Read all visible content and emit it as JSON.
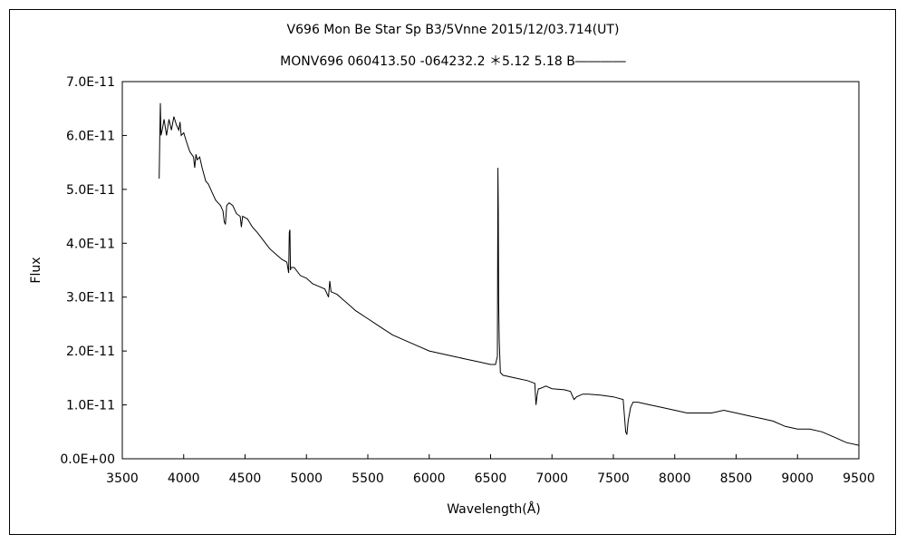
{
  "chart_data": {
    "type": "line",
    "title": "V696 Mon    Be Star    Sp B3/5Vnne    2015/12/03.714(UT)",
    "subtitle": "MONV696 060413.50 -064232.2 ＊5.12 5.18 B――――",
    "xlabel": "Wavelength(Å)",
    "ylabel": "Flux",
    "xlim": [
      3500,
      9500
    ],
    "ylim": [
      0,
      7e-11
    ],
    "xticks": [
      "3500",
      "4000",
      "4500",
      "5000",
      "5500",
      "6000",
      "6500",
      "7000",
      "7500",
      "8000",
      "8500",
      "9000",
      "9500"
    ],
    "yticks": [
      "0.0E+00",
      "1.0E-11",
      "2.0E-11",
      "3.0E-11",
      "4.0E-11",
      "5.0E-11",
      "6.0E-11",
      "7.0E-11"
    ],
    "grid": false,
    "legend": "none",
    "series": [
      {
        "color": "#000000",
        "x": [
          3800,
          3805,
          3810,
          3815,
          3825,
          3840,
          3860,
          3880,
          3900,
          3920,
          3940,
          3960,
          3970,
          3980,
          4000,
          4020,
          4050,
          4080,
          4090,
          4100,
          4110,
          4130,
          4150,
          4180,
          4200,
          4230,
          4260,
          4280,
          4300,
          4320,
          4330,
          4340,
          4350,
          4370,
          4400,
          4430,
          4460,
          4470,
          4480,
          4520,
          4560,
          4600,
          4650,
          4700,
          4750,
          4800,
          4840,
          4855,
          4860,
          4865,
          4870,
          4875,
          4900,
          4950,
          5000,
          5050,
          5100,
          5150,
          5180,
          5190,
          5200,
          5250,
          5300,
          5350,
          5400,
          5500,
          5600,
          5700,
          5800,
          5900,
          6000,
          6100,
          6200,
          6300,
          6400,
          6500,
          6540,
          6555,
          6560,
          6563,
          6566,
          6570,
          6580,
          6600,
          6700,
          6800,
          6860,
          6870,
          6880,
          6890,
          6900,
          6950,
          7000,
          7100,
          7150,
          7180,
          7200,
          7250,
          7300,
          7400,
          7500,
          7580,
          7600,
          7610,
          7620,
          7640,
          7660,
          7700,
          7800,
          7900,
          8000,
          8100,
          8200,
          8300,
          8400,
          8500,
          8600,
          8700,
          8800,
          8900,
          9000,
          9100,
          9200,
          9300,
          9400,
          9500
        ],
        "y": [
          5.2e-11,
          5.9e-11,
          6.6e-11,
          6e-11,
          6.1e-11,
          6.3e-11,
          6e-11,
          6.3e-11,
          6.1e-11,
          6.35e-11,
          6.2e-11,
          6.1e-11,
          6.25e-11,
          6e-11,
          6.05e-11,
          5.9e-11,
          5.7e-11,
          5.6e-11,
          5.4e-11,
          5.65e-11,
          5.55e-11,
          5.6e-11,
          5.4e-11,
          5.15e-11,
          5.1e-11,
          4.95e-11,
          4.8e-11,
          4.75e-11,
          4.7e-11,
          4.6e-11,
          4.4e-11,
          4.35e-11,
          4.7e-11,
          4.75e-11,
          4.7e-11,
          4.55e-11,
          4.5e-11,
          4.3e-11,
          4.5e-11,
          4.45e-11,
          4.3e-11,
          4.2e-11,
          4.05e-11,
          3.9e-11,
          3.8e-11,
          3.7e-11,
          3.65e-11,
          3.45e-11,
          4.2e-11,
          4.25e-11,
          3.5e-11,
          3.55e-11,
          3.55e-11,
          3.4e-11,
          3.35e-11,
          3.25e-11,
          3.2e-11,
          3.15e-11,
          3e-11,
          3.3e-11,
          3.1e-11,
          3.05e-11,
          2.95e-11,
          2.85e-11,
          2.75e-11,
          2.6e-11,
          2.45e-11,
          2.3e-11,
          2.2e-11,
          2.1e-11,
          2e-11,
          1.95e-11,
          1.9e-11,
          1.85e-11,
          1.8e-11,
          1.75e-11,
          1.75e-11,
          1.9e-11,
          5.4e-11,
          4.6e-11,
          2.9e-11,
          2.2e-11,
          1.6e-11,
          1.55e-11,
          1.5e-11,
          1.45e-11,
          1.4e-11,
          1e-11,
          1.2e-11,
          1.3e-11,
          1.3e-11,
          1.35e-11,
          1.3e-11,
          1.28e-11,
          1.25e-11,
          1.1e-11,
          1.15e-11,
          1.2e-11,
          1.2e-11,
          1.18e-11,
          1.15e-11,
          1.1e-11,
          5e-12,
          4.5e-12,
          7e-12,
          9.5e-12,
          1.05e-11,
          1.05e-11,
          1e-11,
          9.5e-12,
          9e-12,
          8.5e-12,
          8.5e-12,
          8.5e-12,
          9e-12,
          8.5e-12,
          8e-12,
          7.5e-12,
          7e-12,
          6e-12,
          5.5e-12,
          5.5e-12,
          5e-12,
          4e-12,
          3e-12,
          2.5e-12
        ]
      }
    ]
  }
}
